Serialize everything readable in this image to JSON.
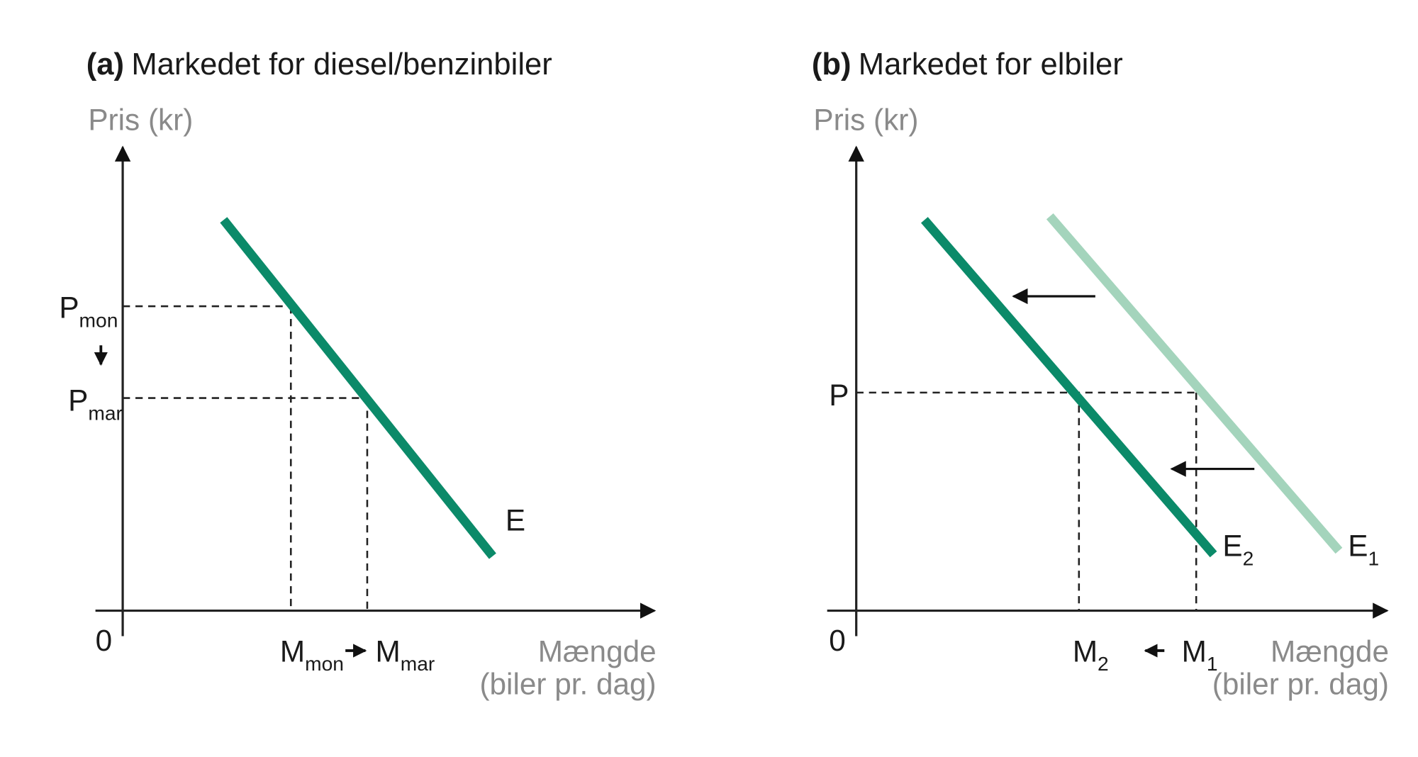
{
  "panels": [
    {
      "label": "(a)",
      "title": "Markedet for diesel/benzinbiler",
      "y_axis_label": "Pris (kr)",
      "origin": "0",
      "x_axis_label": [
        "Mængde",
        "(biler pr. dag)"
      ],
      "price_labels": [
        {
          "main": "P",
          "sub": "mon"
        },
        {
          "main": "P",
          "sub": "mar"
        }
      ],
      "quantity_labels": [
        {
          "main": "M",
          "sub": "mon"
        },
        {
          "main": "M",
          "sub": "mar"
        }
      ],
      "curves": [
        {
          "main": "E"
        }
      ]
    },
    {
      "label": "(b)",
      "title": "Markedet for elbiler",
      "y_axis_label": "Pris (kr)",
      "origin": "0",
      "x_axis_label": [
        "Mængde",
        "(biler pr. dag)"
      ],
      "price_labels": [
        {
          "main": "P"
        }
      ],
      "quantity_labels": [
        {
          "main": "M",
          "sub": "2"
        },
        {
          "main": "M",
          "sub": "1"
        }
      ],
      "curves": [
        {
          "main": "E",
          "sub": "2"
        },
        {
          "main": "E",
          "sub": "1"
        }
      ]
    }
  ]
}
